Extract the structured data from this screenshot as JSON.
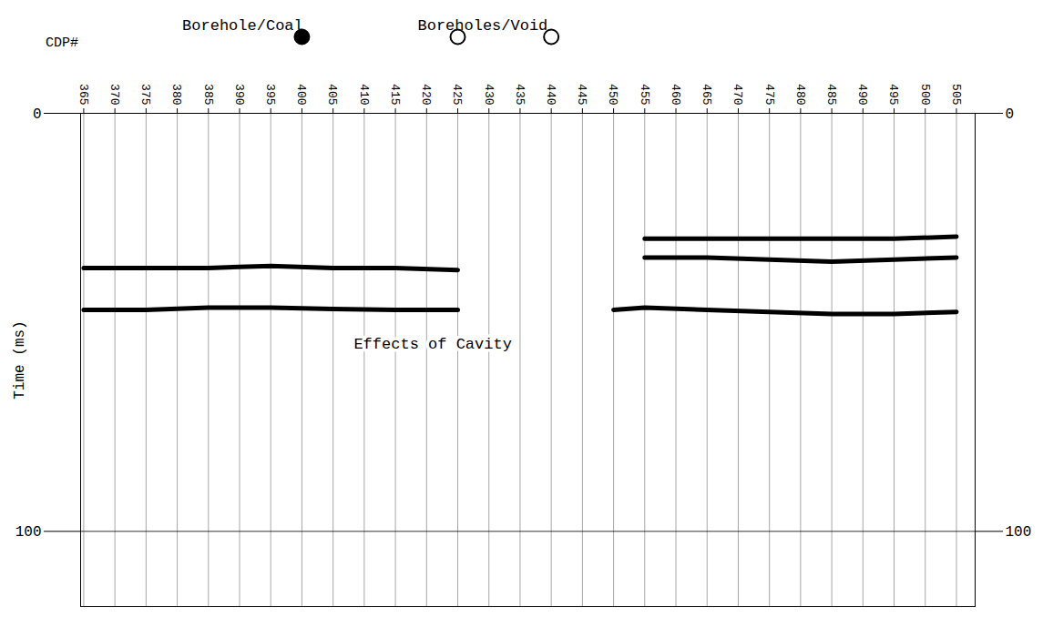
{
  "chart_data": {
    "type": "line",
    "x_label": "CDP#",
    "y_label": "Time (ms)",
    "x": [
      365,
      375,
      385,
      395,
      405,
      415,
      425,
      430,
      435,
      440,
      445,
      450,
      455,
      465,
      475,
      485,
      495,
      505
    ],
    "series": [
      {
        "color": "#000000",
        "values": [
          null,
          null,
          null,
          null,
          null,
          null,
          null,
          null,
          null,
          null,
          null,
          null,
          30,
          30,
          30,
          30,
          30,
          29.5
        ]
      },
      {
        "color": "#000000",
        "values": [
          37,
          37,
          37,
          36.5,
          37,
          37,
          37.5,
          null,
          null,
          null,
          null,
          null,
          34.5,
          34.5,
          35,
          35.5,
          35,
          34.5
        ]
      },
      {
        "color": "#000000",
        "values": [
          47,
          47,
          46.5,
          46.5,
          46.8,
          47,
          47,
          null,
          null,
          null,
          null,
          47,
          46.5,
          47,
          47.5,
          48,
          48,
          47.5
        ]
      }
    ],
    "xlim": [
      364.5,
      508
    ],
    "xticks": [
      365,
      370,
      375,
      380,
      385,
      390,
      395,
      400,
      405,
      410,
      415,
      420,
      425,
      430,
      435,
      440,
      445,
      450,
      455,
      460,
      465,
      470,
      475,
      480,
      485,
      490,
      495,
      500,
      505
    ],
    "ylim": [
      0,
      118
    ],
    "yticks": [
      0,
      100
    ],
    "grid": true,
    "boreholes": [
      {
        "x": 400,
        "marker": "filled"
      },
      {
        "x": 425,
        "marker": "open"
      },
      {
        "x": 440,
        "marker": "open"
      }
    ],
    "annotations": [
      {
        "text": "Borehole/Coal",
        "x": 390.5
      },
      {
        "text": "Boreholes/Void",
        "x": 429
      },
      {
        "text": "Effects of Cavity",
        "x": 421,
        "y": 55
      }
    ]
  }
}
